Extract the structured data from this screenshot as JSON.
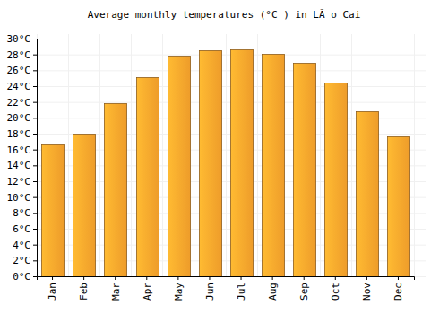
{
  "chart_data": {
    "type": "bar",
    "title": "Average monthly temperatures (°C ) in LÃ o Cai",
    "categories": [
      "Jan",
      "Feb",
      "Mar",
      "Apr",
      "May",
      "Jun",
      "Jul",
      "Aug",
      "Sep",
      "Oct",
      "Nov",
      "Dec"
    ],
    "values": [
      16.6,
      18.0,
      21.9,
      25.1,
      27.8,
      28.5,
      28.6,
      28.1,
      26.9,
      24.4,
      20.8,
      17.7
    ],
    "color": "#fba52c",
    "ylim": [
      0,
      30
    ],
    "yticks": [
      {
        "value": 0,
        "label": "0°C"
      },
      {
        "value": 2,
        "label": "2°C"
      },
      {
        "value": 4,
        "label": "4°C"
      },
      {
        "value": 6,
        "label": "6°C"
      },
      {
        "value": 8,
        "label": "8°C"
      },
      {
        "value": 10,
        "label": "10°C"
      },
      {
        "value": 12,
        "label": "12°C"
      },
      {
        "value": 14,
        "label": "14°C"
      },
      {
        "value": 16,
        "label": "16°C"
      },
      {
        "value": 18,
        "label": "18°C"
      },
      {
        "value": 20,
        "label": "20°C"
      },
      {
        "value": 22,
        "label": "22°C"
      },
      {
        "value": 24,
        "label": "24°C"
      },
      {
        "value": 26,
        "label": "26°C"
      },
      {
        "value": 28,
        "label": "28°C"
      },
      {
        "value": 30,
        "label": "30°C"
      }
    ],
    "grid": true
  }
}
